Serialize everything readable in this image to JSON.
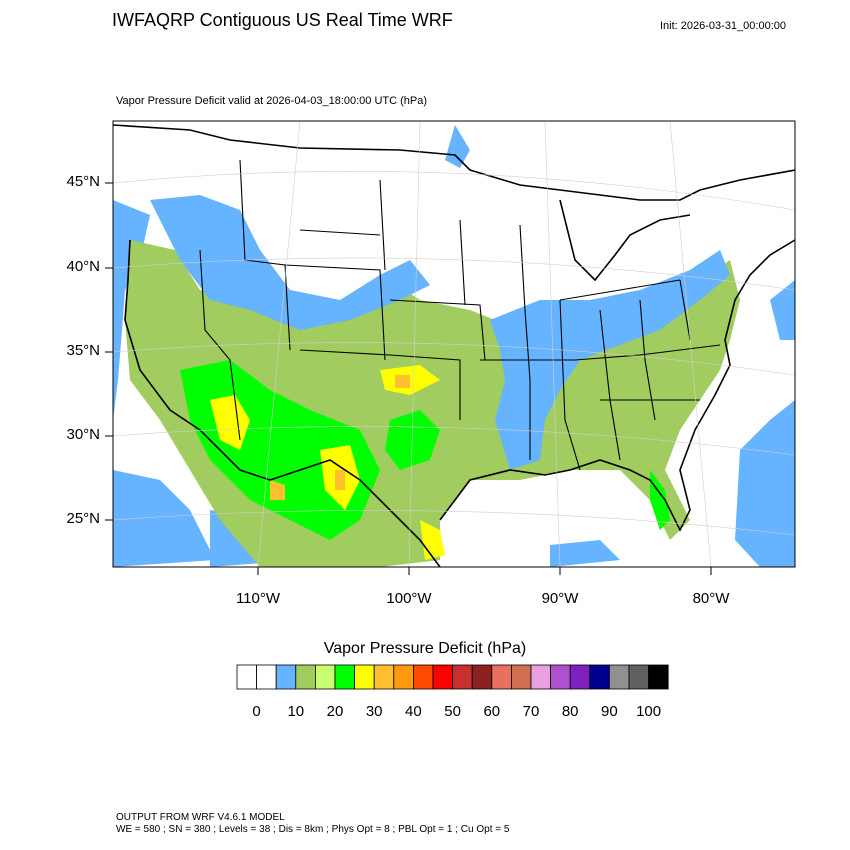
{
  "header": {
    "title": "IWFAQRP Contiguous US Real Time WRF",
    "init": "Init: 2026-03-31_00:00:00",
    "subtitle": "Vapor Pressure Deficit valid at 2026-04-03_18:00:00 UTC   (hPa)"
  },
  "map": {
    "latitude_labels": [
      "45°N",
      "40°N",
      "35°N",
      "30°N",
      "25°N"
    ],
    "longitude_labels": [
      "110°W",
      "100°W",
      "90°W",
      "80°W"
    ],
    "colors": {
      "ocean_shade": "#66b3ff",
      "land_low": "#ffffff",
      "land_mid": "#a0cc60",
      "land_high": "#00ff00"
    }
  },
  "colorbar": {
    "title": "Vapor Pressure Deficit  (hPa)",
    "colors": [
      "#ffffff",
      "#ffffff",
      "#66b3ff",
      "#a0cc60",
      "#c8ff70",
      "#00ff00",
      "#ffff00",
      "#ffc030",
      "#ff9a10",
      "#ff4800",
      "#ff0000",
      "#c83030",
      "#8c2020",
      "#e87060",
      "#d07050",
      "#e8a0e0",
      "#b050d0",
      "#8020c0",
      "#000090",
      "#909090",
      "#606060",
      "#000000"
    ],
    "labels": [
      "0",
      "10",
      "20",
      "30",
      "40",
      "50",
      "60",
      "70",
      "80",
      "90",
      "100"
    ]
  },
  "footer": {
    "line1": "OUTPUT FROM WRF V4.6.1 MODEL",
    "line2": "WE = 580 ; SN = 380 ; Levels = 38 ; Dis = 8km ; Phys Opt = 8 ; PBL Opt = 1 ; Cu Opt = 5"
  }
}
